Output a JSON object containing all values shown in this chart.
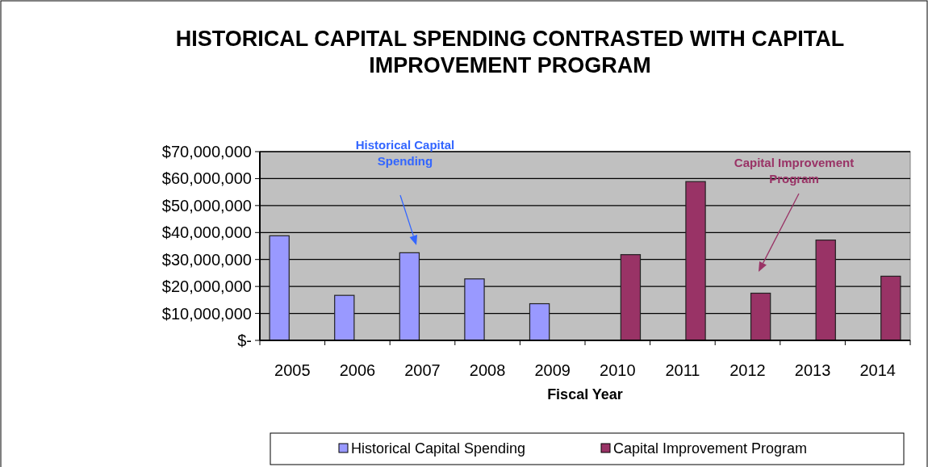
{
  "chart_data": {
    "type": "bar",
    "title": "HISTORICAL CAPITAL SPENDING CONTRASTED WITH CAPITAL IMPROVEMENT PROGRAM",
    "xlabel": "Fiscal Year",
    "categories": [
      "2005",
      "2006",
      "2007",
      "2008",
      "2009",
      "2010",
      "2011",
      "2012",
      "2013",
      "2014"
    ],
    "series": [
      {
        "name": "Historical Capital Spending",
        "color": "#9999ff",
        "values": [
          38800000,
          16700000,
          32500000,
          22800000,
          13600000,
          null,
          null,
          null,
          null,
          null
        ]
      },
      {
        "name": "Capital Improvement Program",
        "color": "#993366",
        "values": [
          null,
          null,
          null,
          null,
          null,
          31800000,
          58900000,
          17500000,
          37200000,
          23800000
        ]
      }
    ],
    "ylim": [
      0,
      70000000
    ],
    "yticks": [
      {
        "value": 0,
        "label": "$-"
      },
      {
        "value": 10000000,
        "label": "$10,000,000"
      },
      {
        "value": 20000000,
        "label": "$20,000,000"
      },
      {
        "value": 30000000,
        "label": "$30,000,000"
      },
      {
        "value": 40000000,
        "label": "$40,000,000"
      },
      {
        "value": 50000000,
        "label": "$50,000,000"
      },
      {
        "value": 60000000,
        "label": "$60,000,000"
      },
      {
        "value": 70000000,
        "label": "$70,000,000"
      }
    ],
    "grid": "y",
    "legend": "bottom",
    "annotations": [
      "Historical Capital Spending",
      "Capital Improvement Program"
    ]
  }
}
